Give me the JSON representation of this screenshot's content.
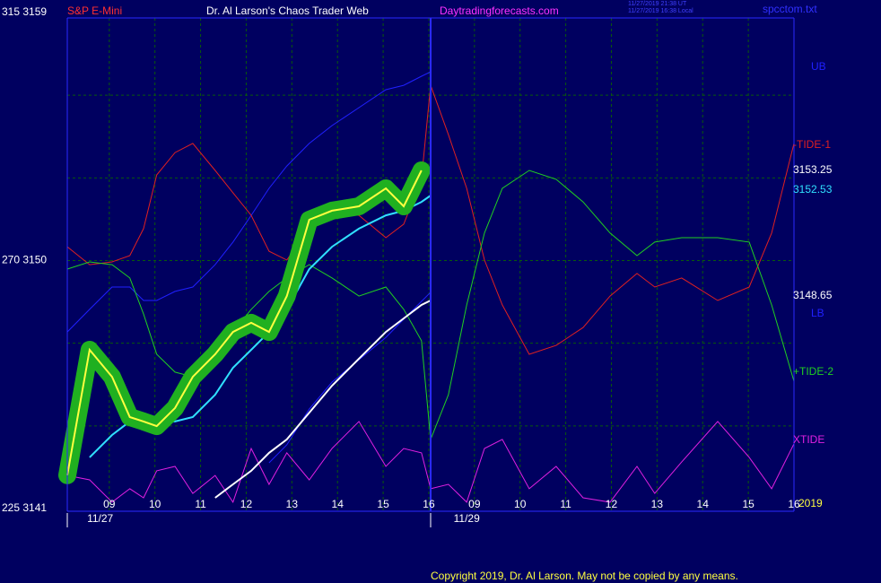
{
  "chart_data": {
    "type": "line",
    "symbol": "S&P E-Mini",
    "title": "Dr. Al Larson's Chaos Trader Web",
    "site": "Daytradingforecasts.com",
    "timestamps": [
      "11/27/2019 21:38 UT",
      "11/27/2019 16:38 Local"
    ],
    "file": "spcctom.txt",
    "year": "2019",
    "copyright": "Copyright 2019, Dr. Al Larson. May not be copied by any means.",
    "grid": true,
    "xlim": [
      8.08,
      24.0
    ],
    "ylim": [
      3141,
      3159
    ],
    "yticks": [
      {
        "value": 3141,
        "label": "225 3141"
      },
      {
        "value": 3150,
        "label": "270 3150"
      },
      {
        "value": 3159,
        "label": "315 3159"
      }
    ],
    "ygrid": [
      3144,
      3147,
      3153,
      3156
    ],
    "xticks": [
      {
        "value": 9,
        "label": "09"
      },
      10,
      11,
      12,
      13,
      14,
      15,
      16,
      {
        "value": 17,
        "label": "09"
      },
      {
        "value": 18,
        "label": "10"
      },
      {
        "value": 19,
        "label": "11"
      },
      {
        "value": 20,
        "label": "12"
      },
      {
        "value": 21,
        "label": "13"
      },
      {
        "value": 22,
        "label": "14"
      },
      {
        "value": 23,
        "label": "15"
      },
      {
        "value": 24,
        "label": "16"
      }
    ],
    "date_labels": [
      {
        "value": 8.8,
        "label": "11/27"
      },
      {
        "value": 16.83,
        "label": "11/29"
      }
    ],
    "x": [
      8.08,
      8.57,
      9.06,
      9.45,
      9.75,
      10.04,
      10.44,
      10.83,
      11.32,
      11.71,
      12.11,
      12.5,
      12.89,
      13.38,
      13.88,
      14.47,
      15.06,
      15.45,
      15.84,
      16.04,
      16.43,
      16.83,
      17.22,
      17.61,
      18.2,
      18.79,
      19.38,
      19.97,
      20.56,
      20.95,
      21.54,
      22.33,
      23.02,
      23.51,
      24.0
    ],
    "series": [
      {
        "label": "UB",
        "color": "#2020ff",
        "values": [
          3147.41,
          3148.23,
          3149.04,
          3149.04,
          3148.55,
          3148.55,
          3148.88,
          3149.04,
          3149.85,
          3150.67,
          3151.64,
          3152.62,
          3153.43,
          3154.25,
          3154.9,
          3155.55,
          3156.2,
          3156.36,
          3156.69,
          3156.85,
          null,
          null,
          null,
          null,
          null,
          null,
          null,
          null,
          null,
          null,
          null,
          null,
          null,
          null,
          null
        ]
      },
      {
        "label": "LB",
        "color": "#2020ff",
        "values": [
          null,
          null,
          null,
          null,
          null,
          null,
          null,
          null,
          null,
          null,
          null,
          3142.66,
          3143.31,
          3144.61,
          3145.59,
          3146.4,
          3147.21,
          3147.87,
          3148.52,
          3148.85,
          null,
          null,
          null,
          null,
          null,
          null,
          null,
          null,
          null,
          null,
          null,
          null,
          null,
          null,
          null
        ]
      },
      {
        "label": "-TIDE-1",
        "color": "#e02020",
        "values": [
          3150.5,
          3149.85,
          3149.95,
          3150.18,
          3151.16,
          3153.11,
          3153.92,
          3154.25,
          3153.27,
          3152.46,
          3151.64,
          3150.34,
          3150.02,
          3151.16,
          3151.81,
          3151.64,
          3150.83,
          3151.32,
          3152.95,
          3156.36,
          3154.57,
          3152.62,
          3150.02,
          3148.39,
          3146.6,
          3146.92,
          3147.57,
          3148.71,
          3149.53,
          3149.04,
          3149.37,
          3148.55,
          3149.04,
          3151.0,
          3154.25
        ]
      },
      {
        "label": "+TIDE-2",
        "color": "#20d020",
        "values": [
          3149.69,
          3149.95,
          3149.85,
          3149.37,
          3148.06,
          3146.6,
          3145.95,
          3145.78,
          3146.44,
          3147.41,
          3148.23,
          3148.88,
          3149.37,
          3149.85,
          3149.37,
          3148.71,
          3149.04,
          3148.23,
          3147.09,
          3143.51,
          3145.13,
          3148.39,
          3151.0,
          3152.62,
          3153.27,
          3152.95,
          3152.13,
          3151.0,
          3150.18,
          3150.67,
          3150.83,
          3150.83,
          3150.67,
          3148.39,
          3145.62
        ]
      },
      {
        "label": "XTIDE",
        "color": "#e020e0",
        "values": [
          3142.2,
          3142.04,
          3141.23,
          3141.72,
          3141.39,
          3142.37,
          3142.53,
          3141.55,
          3142.2,
          3141.23,
          3143.18,
          3141.88,
          3143.02,
          3142.04,
          3143.18,
          3144.16,
          3142.53,
          3143.18,
          3143.02,
          3141.72,
          3141.88,
          3141.23,
          3143.18,
          3143.51,
          3141.72,
          3142.53,
          3141.39,
          3141.23,
          3142.53,
          3141.55,
          3142.69,
          3144.16,
          3142.86,
          3141.72,
          3143.35
        ]
      },
      {
        "label": "3148.65",
        "color": "#ffffff",
        "values": [
          null,
          null,
          null,
          null,
          null,
          null,
          null,
          null,
          3141.39,
          3141.88,
          3142.37,
          3143.02,
          3143.51,
          3144.48,
          3145.46,
          3146.44,
          3147.41,
          3147.9,
          3148.39,
          3148.55,
          null,
          null,
          null,
          null,
          null,
          null,
          null,
          null,
          null,
          null,
          null,
          null,
          null,
          null,
          null
        ]
      },
      {
        "label": "3152.53",
        "color": "#30e0ff",
        "values": [
          null,
          3142.86,
          3143.67,
          3144.16,
          3144.32,
          3144.16,
          3144.16,
          3144.32,
          3145.13,
          3146.11,
          3146.76,
          3147.41,
          3148.23,
          3149.69,
          3150.5,
          3151.16,
          3151.64,
          3151.81,
          3152.13,
          3152.36,
          null,
          null,
          null,
          null,
          null,
          null,
          null,
          null,
          null,
          null,
          null,
          null,
          null,
          null,
          null
        ]
      },
      {
        "label": "3153.25",
        "color": "#ffff40",
        "label_color": "#ffffff",
        "highlight": "#20b020",
        "values": [
          3142.21,
          3146.76,
          3145.78,
          3144.32,
          3144.16,
          3143.99,
          3144.65,
          3145.78,
          3146.6,
          3147.41,
          3147.74,
          3147.41,
          3148.71,
          3151.48,
          3151.81,
          3151.97,
          3152.62,
          3151.97,
          3153.27,
          null,
          null,
          null,
          null,
          null,
          null,
          null,
          null,
          null,
          null,
          null,
          null,
          null,
          null,
          null,
          null
        ]
      }
    ]
  }
}
